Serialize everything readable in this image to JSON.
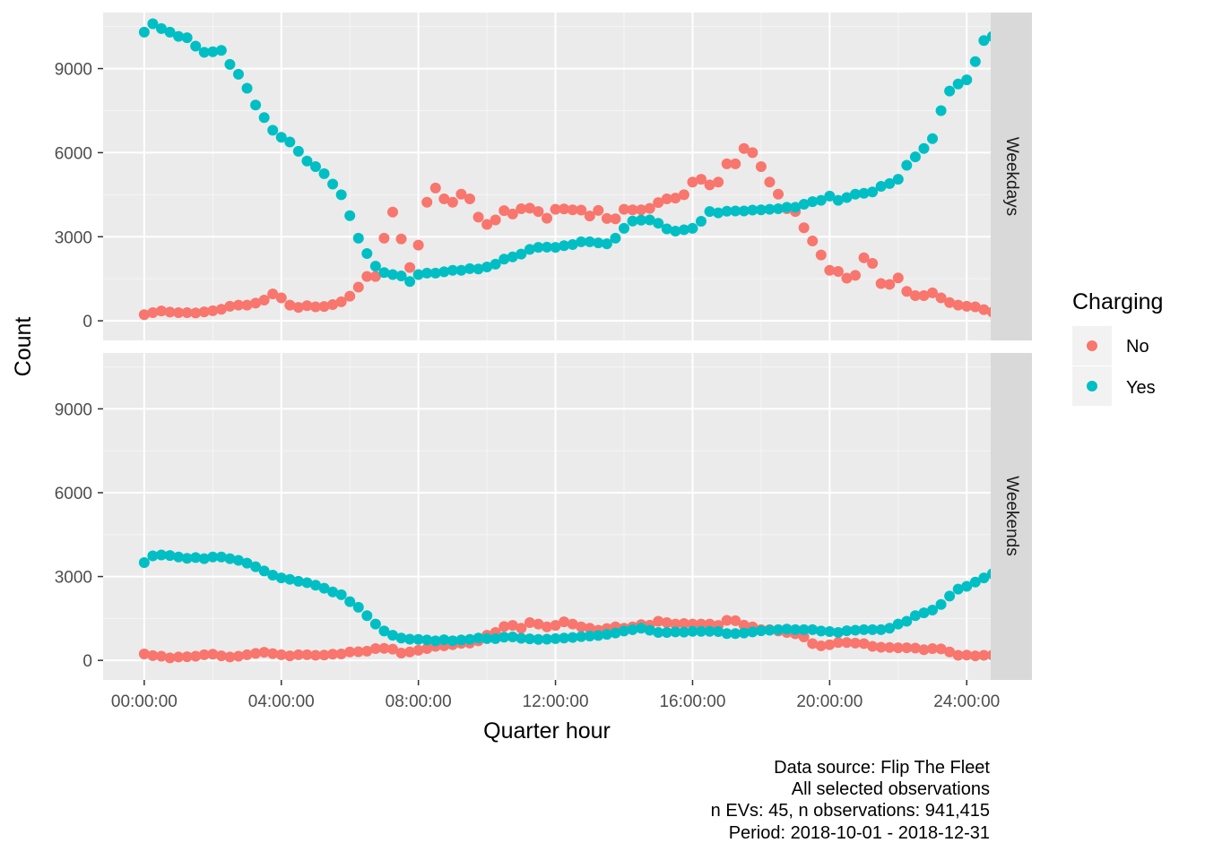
{
  "chart_data": {
    "type": "scatter",
    "xlabel": "Quarter hour",
    "ylabel": "Count",
    "x_ticks": [
      "00:00:00",
      "04:00:00",
      "08:00:00",
      "12:00:00",
      "16:00:00",
      "20:00:00",
      "24:00:00"
    ],
    "x_tick_hours": [
      0,
      4,
      8,
      12,
      16,
      20,
      24
    ],
    "y_ticks": [
      0,
      3000,
      6000,
      9000
    ],
    "ylim": [
      -700,
      11000
    ],
    "xlim_hours": [
      -1.2,
      24.7
    ],
    "grid": true,
    "legend": {
      "title": "Charging",
      "placement": "right",
      "entries": [
        {
          "label": "No",
          "color": "#F8766D"
        },
        {
          "label": "Yes",
          "color": "#00BFC4"
        }
      ]
    },
    "x_step_hours": 0.25,
    "panels": [
      {
        "label": "Weekdays",
        "series": [
          {
            "charging": "No",
            "values": [
              220,
              290,
              350,
              310,
              290,
              290,
              280,
              320,
              360,
              410,
              520,
              560,
              560,
              630,
              740,
              960,
              820,
              560,
              480,
              540,
              500,
              510,
              580,
              680,
              880,
              1200,
              1580,
              1580,
              2950,
              3880,
              2920,
              1900,
              2700,
              4230,
              4740,
              4350,
              4230,
              4520,
              4350,
              3700,
              3440,
              3600,
              3930,
              3810,
              4000,
              4020,
              3900,
              3660,
              3980,
              3990,
              3960,
              3950,
              3740,
              3940,
              3650,
              3640,
              3980,
              3960,
              3960,
              4010,
              4220,
              4350,
              4380,
              4500,
              4950,
              5050,
              4850,
              4950,
              5600,
              5600,
              6150,
              6000,
              5500,
              4950,
              4520,
              4000,
              3900,
              3320,
              2850,
              2350,
              1800,
              1760,
              1520,
              1620,
              2250,
              2050,
              1330,
              1300,
              1530,
              1050,
              900,
              900,
              1000,
              820,
              650,
              560,
              520,
              500,
              400,
              310
            ]
          },
          {
            "charging": "Yes",
            "values": [
              10300,
              10600,
              10430,
              10300,
              10150,
              10100,
              9800,
              9580,
              9600,
              9650,
              9150,
              8800,
              8300,
              7700,
              7250,
              6800,
              6550,
              6380,
              6050,
              5700,
              5500,
              5250,
              4880,
              4500,
              3750,
              2950,
              2400,
              1950,
              1720,
              1650,
              1600,
              1400,
              1650,
              1700,
              1700,
              1750,
              1800,
              1800,
              1860,
              1850,
              1920,
              2020,
              2200,
              2280,
              2380,
              2550,
              2620,
              2630,
              2620,
              2680,
              2720,
              2820,
              2820,
              2780,
              2750,
              2950,
              3300,
              3560,
              3590,
              3600,
              3480,
              3280,
              3200,
              3250,
              3300,
              3550,
              3900,
              3850,
              3910,
              3920,
              3920,
              3950,
              3960,
              3980,
              4000,
              4050,
              4050,
              4160,
              4250,
              4300,
              4450,
              4300,
              4400,
              4520,
              4550,
              4600,
              4800,
              4900,
              5050,
              5550,
              5850,
              6150,
              6500,
              7500,
              8200,
              8450,
              8600,
              9250,
              10000,
              10150
            ]
          }
        ]
      },
      {
        "label": "Weekends",
        "series": [
          {
            "charging": "No",
            "values": [
              230,
              170,
              150,
              90,
              120,
              130,
              150,
              200,
              220,
              160,
              120,
              150,
              200,
              250,
              290,
              240,
              200,
              160,
              200,
              200,
              180,
              190,
              220,
              230,
              300,
              310,
              330,
              420,
              430,
              400,
              260,
              300,
              360,
              420,
              500,
              520,
              560,
              610,
              620,
              700,
              900,
              1000,
              1210,
              1250,
              1150,
              1350,
              1300,
              1200,
              1250,
              1380,
              1300,
              1200,
              1150,
              1080,
              1140,
              1200,
              1150,
              1200,
              1280,
              1260,
              1400,
              1350,
              1300,
              1320,
              1300,
              1300,
              1300,
              1250,
              1430,
              1420,
              1260,
              1200,
              1100,
              1100,
              1050,
              1000,
              950,
              840,
              600,
              520,
              560,
              640,
              640,
              620,
              600,
              500,
              470,
              460,
              450,
              450,
              440,
              380,
              420,
              410,
              300,
              180,
              190,
              160,
              180,
              190
            ]
          },
          {
            "charging": "Yes",
            "values": [
              3500,
              3740,
              3770,
              3750,
              3700,
              3650,
              3680,
              3640,
              3700,
              3700,
              3640,
              3580,
              3480,
              3350,
              3200,
              3050,
              2950,
              2900,
              2830,
              2780,
              2690,
              2580,
              2450,
              2350,
              2100,
              1900,
              1600,
              1300,
              1050,
              900,
              800,
              760,
              750,
              730,
              700,
              740,
              700,
              730,
              750,
              800,
              780,
              780,
              830,
              840,
              790,
              770,
              750,
              760,
              780,
              800,
              820,
              850,
              870,
              890,
              930,
              980,
              1050,
              1100,
              1150,
              1080,
              1000,
              1000,
              1020,
              1010,
              1040,
              1040,
              1040,
              1030,
              960,
              960,
              980,
              1020,
              1060,
              1080,
              1100,
              1120,
              1100,
              1100,
              1100,
              1050,
              1030,
              1000,
              1060,
              1080,
              1100,
              1100,
              1100,
              1150,
              1300,
              1400,
              1600,
              1700,
              1800,
              2000,
              2300,
              2550,
              2650,
              2800,
              2950,
              3100
            ]
          }
        ]
      }
    ]
  },
  "caption": {
    "line1": "Data source: Flip The Fleet",
    "line2": "All selected observations",
    "line3": "n EVs: 45, n observations: 941,415",
    "line4": "Period: 2018-10-01 - 2018-12-31"
  }
}
